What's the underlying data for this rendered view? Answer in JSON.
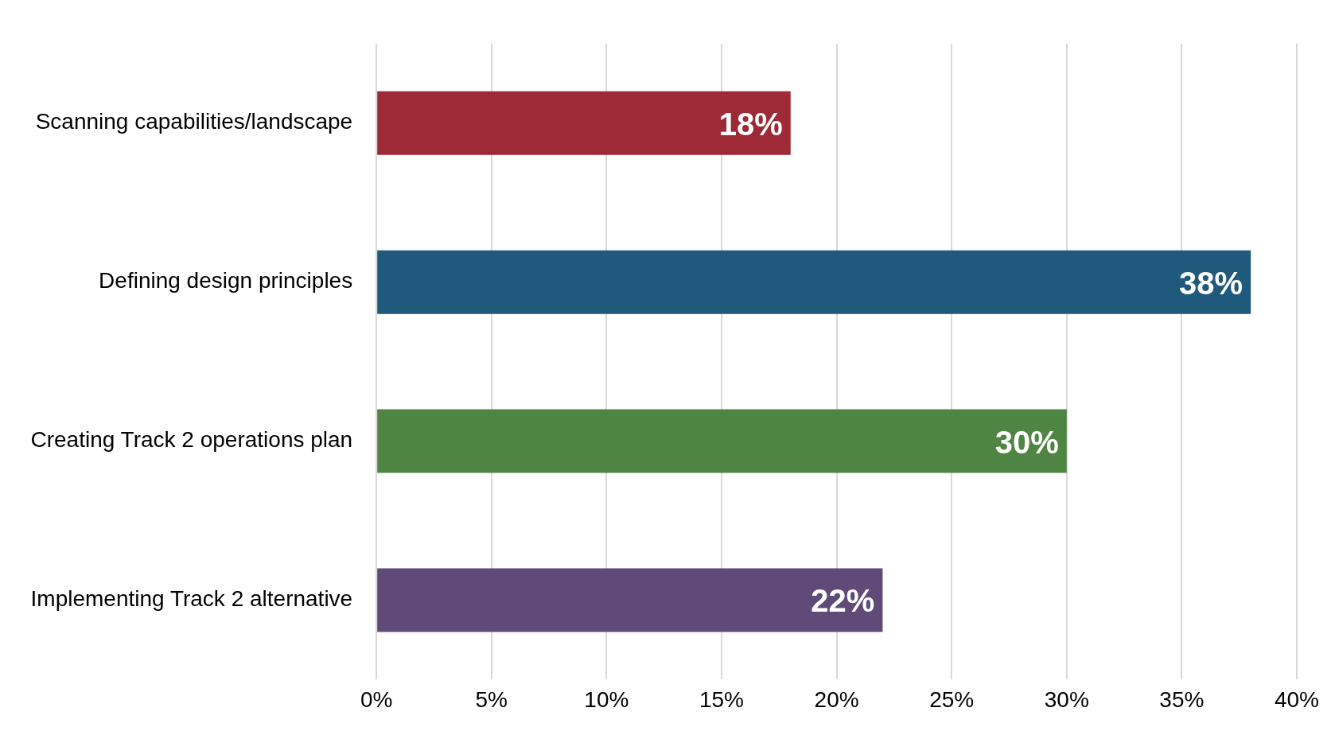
{
  "chart_data": {
    "type": "bar",
    "orientation": "horizontal",
    "categories": [
      "Scanning capabilities/landscape",
      "Defining design principles",
      "Creating Track 2 operations plan",
      "Implementing Track 2 alternative"
    ],
    "values": [
      18,
      38,
      30,
      22
    ],
    "colors": [
      "#9e2a37",
      "#1f5a7c",
      "#4e8542",
      "#5f4a78"
    ],
    "value_labels": [
      "18%",
      "38%",
      "30%",
      "22%"
    ],
    "xlim": [
      0,
      40
    ],
    "xticks": [
      {
        "value": 0,
        "label": "0%"
      },
      {
        "value": 5,
        "label": "5%"
      },
      {
        "value": 10,
        "label": "10%"
      },
      {
        "value": 15,
        "label": "15%"
      },
      {
        "value": 20,
        "label": "20%"
      },
      {
        "value": 25,
        "label": "25%"
      },
      {
        "value": 30,
        "label": "30%"
      },
      {
        "value": 35,
        "label": "35%"
      },
      {
        "value": 40,
        "label": "40%"
      }
    ],
    "grid": "x",
    "legend": false
  }
}
